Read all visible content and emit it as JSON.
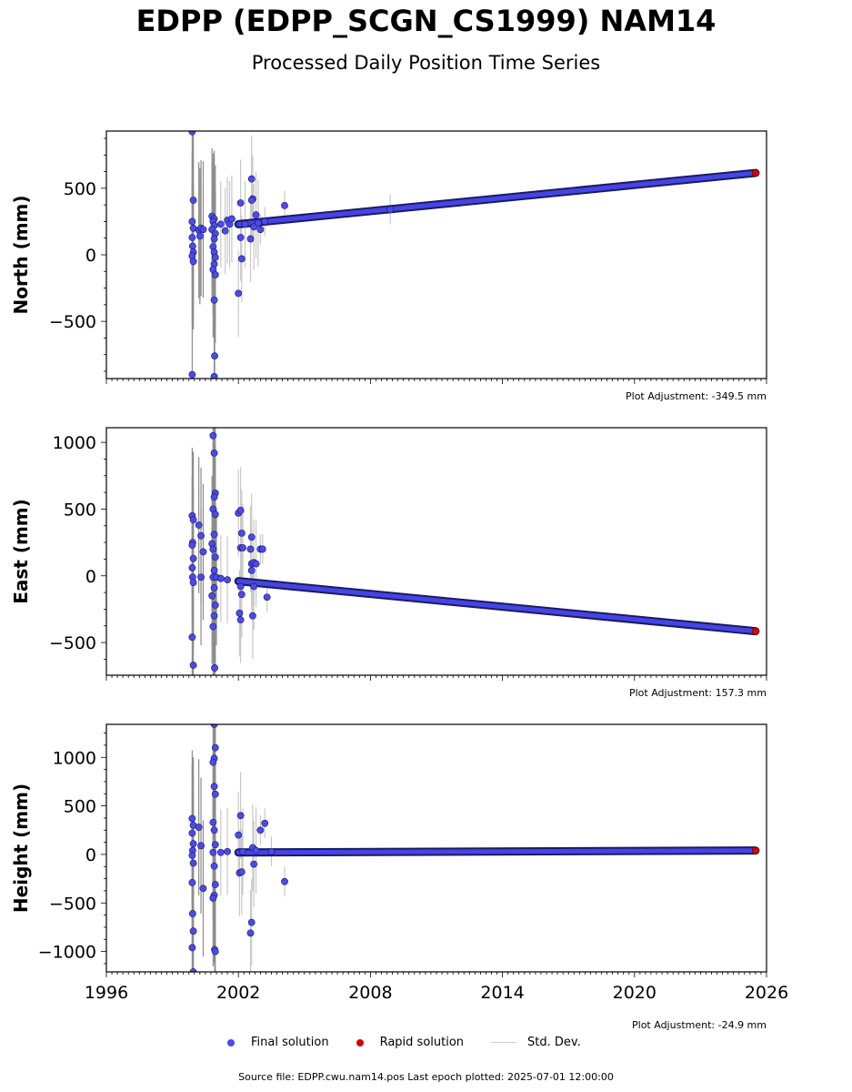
{
  "header": {
    "title": "EDPP (EDPP_SCGN_CS1999) NAM14",
    "subtitle": "Processed Daily Position Time Series"
  },
  "legend": {
    "final": "Final solution",
    "rapid": "Rapid solution",
    "stddev": "Std. Dev."
  },
  "footer": {
    "source": "Source file: EDPP.cwu.nam14.pos  Last epoch plotted: 2025-07-01 12:00:00"
  },
  "colors": {
    "final": "#4a4af0",
    "rapid": "#dd0000",
    "stddev": "#c8c8c8"
  },
  "chart_data": [
    {
      "type": "scatter",
      "ylabel": "North (mm)",
      "adjustment": "Plot Adjustment: -349.5 mm",
      "xlim": [
        1996,
        2026
      ],
      "ylim": [
        -930,
        930
      ],
      "xticks": [
        1996,
        2002,
        2008,
        2014,
        2020,
        2026
      ],
      "yticks": [
        -500,
        0,
        500
      ],
      "show_xtick_labels": false,
      "trend": {
        "start": [
          2002.0,
          230
        ],
        "end": [
          2025.5,
          615
        ]
      },
      "series": [
        {
          "name": "Final solution",
          "points": [
            [
              1999.9,
              925
            ],
            [
              1999.95,
              410
            ],
            [
              1999.9,
              250
            ],
            [
              1999.95,
              200
            ],
            [
              1999.9,
              130
            ],
            [
              1999.92,
              65
            ],
            [
              1999.95,
              20
            ],
            [
              1999.9,
              -10
            ],
            [
              1999.95,
              -50
            ],
            [
              1999.9,
              -900
            ],
            [
              2000.2,
              185
            ],
            [
              2000.3,
              200
            ],
            [
              2000.25,
              140
            ],
            [
              2000.4,
              190
            ],
            [
              2000.8,
              290
            ],
            [
              2000.9,
              270
            ],
            [
              2000.85,
              250
            ],
            [
              2000.9,
              220
            ],
            [
              2000.8,
              190
            ],
            [
              2000.95,
              160
            ],
            [
              2000.9,
              120
            ],
            [
              2000.85,
              60
            ],
            [
              2000.9,
              20
            ],
            [
              2000.95,
              -20
            ],
            [
              2000.9,
              -70
            ],
            [
              2000.85,
              -110
            ],
            [
              2000.95,
              -150
            ],
            [
              2000.9,
              -340
            ],
            [
              2000.92,
              -760
            ],
            [
              2000.9,
              -915
            ],
            [
              2001.2,
              230
            ],
            [
              2001.5,
              260
            ],
            [
              2001.6,
              230
            ],
            [
              2001.4,
              180
            ],
            [
              2001.7,
              270
            ],
            [
              2002.0,
              -290
            ],
            [
              2002.1,
              390
            ],
            [
              2002.1,
              130
            ],
            [
              2002.15,
              -30
            ],
            [
              2002.3,
              230
            ],
            [
              2002.6,
              570
            ],
            [
              2002.65,
              420
            ],
            [
              2002.6,
              410
            ],
            [
              2002.55,
              120
            ],
            [
              2002.7,
              210
            ],
            [
              2002.9,
              240
            ],
            [
              2002.8,
              300
            ],
            [
              2003.0,
              190
            ],
            [
              2003.2,
              250
            ],
            [
              2004.1,
              370
            ],
            [
              2008.9,
              340
            ]
          ]
        },
        {
          "name": "Rapid solution",
          "points": [
            [
              2025.5,
              615
            ]
          ]
        }
      ]
    },
    {
      "type": "scatter",
      "ylabel": "East (mm)",
      "adjustment": "Plot Adjustment: 157.3 mm",
      "xlim": [
        1996,
        2026
      ],
      "ylim": [
        -745,
        1110
      ],
      "xticks": [
        1996,
        2002,
        2008,
        2014,
        2020,
        2026
      ],
      "yticks": [
        -500,
        0,
        500,
        1000
      ],
      "show_xtick_labels": false,
      "trend": {
        "start": [
          2002.0,
          -40
        ],
        "end": [
          2025.5,
          -415
        ]
      },
      "series": [
        {
          "name": "Final solution",
          "points": [
            [
              1999.9,
              450
            ],
            [
              1999.95,
              420
            ],
            [
              1999.92,
              250
            ],
            [
              1999.9,
              230
            ],
            [
              1999.95,
              130
            ],
            [
              1999.9,
              60
            ],
            [
              1999.92,
              -10
            ],
            [
              1999.95,
              -50
            ],
            [
              1999.9,
              -460
            ],
            [
              1999.95,
              -670
            ],
            [
              2000.2,
              380
            ],
            [
              2000.3,
              300
            ],
            [
              2000.4,
              180
            ],
            [
              2000.3,
              -10
            ],
            [
              2000.85,
              1050
            ],
            [
              2000.9,
              920
            ],
            [
              2000.95,
              620
            ],
            [
              2000.9,
              590
            ],
            [
              2000.85,
              500
            ],
            [
              2000.95,
              460
            ],
            [
              2000.9,
              310
            ],
            [
              2000.8,
              240
            ],
            [
              2000.85,
              200
            ],
            [
              2000.95,
              140
            ],
            [
              2000.9,
              40
            ],
            [
              2000.85,
              -10
            ],
            [
              2000.9,
              -90
            ],
            [
              2000.8,
              -150
            ],
            [
              2000.95,
              -220
            ],
            [
              2000.9,
              -300
            ],
            [
              2000.85,
              -380
            ],
            [
              2000.92,
              -690
            ],
            [
              2001.0,
              -10
            ],
            [
              2001.2,
              -20
            ],
            [
              2001.5,
              -30
            ],
            [
              2002.0,
              470
            ],
            [
              2002.1,
              490
            ],
            [
              2002.15,
              320
            ],
            [
              2002.1,
              210
            ],
            [
              2002.2,
              210
            ],
            [
              2002.1,
              -80
            ],
            [
              2002.15,
              -140
            ],
            [
              2002.05,
              -280
            ],
            [
              2002.1,
              -330
            ],
            [
              2002.6,
              290
            ],
            [
              2002.55,
              200
            ],
            [
              2002.6,
              90
            ],
            [
              2002.7,
              100
            ],
            [
              2002.6,
              40
            ],
            [
              2002.8,
              90
            ],
            [
              2002.7,
              -80
            ],
            [
              2002.65,
              -300
            ],
            [
              2003.0,
              200
            ],
            [
              2003.1,
              200
            ],
            [
              2003.3,
              -160
            ]
          ]
        },
        {
          "name": "Rapid solution",
          "points": [
            [
              2025.5,
              -415
            ]
          ]
        }
      ]
    },
    {
      "type": "scatter",
      "ylabel": "Height (mm)",
      "adjustment": "Plot Adjustment: -24.9 mm",
      "xlim": [
        1996,
        2026
      ],
      "ylim": [
        -1210,
        1340
      ],
      "xticks": [
        1996,
        2002,
        2008,
        2014,
        2020,
        2026
      ],
      "yticks": [
        -1000,
        -500,
        0,
        500,
        1000
      ],
      "show_xtick_labels": true,
      "xtick_labels": [
        "1996",
        "2002",
        "2008",
        "2014",
        "2020",
        "2026"
      ],
      "trend": {
        "start": [
          2002.0,
          20
        ],
        "end": [
          2025.5,
          40
        ]
      },
      "series": [
        {
          "name": "Final solution",
          "points": [
            [
              1999.9,
              370
            ],
            [
              1999.95,
              300
            ],
            [
              1999.9,
              220
            ],
            [
              1999.95,
              110
            ],
            [
              1999.92,
              40
            ],
            [
              1999.9,
              -10
            ],
            [
              1999.95,
              -90
            ],
            [
              1999.9,
              -290
            ],
            [
              1999.92,
              -610
            ],
            [
              1999.95,
              -790
            ],
            [
              1999.9,
              -960
            ],
            [
              1999.95,
              -1210
            ],
            [
              2000.2,
              280
            ],
            [
              2000.3,
              90
            ],
            [
              2000.4,
              -350
            ],
            [
              2000.9,
              1340
            ],
            [
              2000.95,
              1100
            ],
            [
              2000.9,
              990
            ],
            [
              2000.85,
              950
            ],
            [
              2000.9,
              700
            ],
            [
              2000.95,
              620
            ],
            [
              2000.85,
              330
            ],
            [
              2000.9,
              250
            ],
            [
              2000.95,
              100
            ],
            [
              2000.85,
              20
            ],
            [
              2000.9,
              -120
            ],
            [
              2000.95,
              -310
            ],
            [
              2000.9,
              -420
            ],
            [
              2000.85,
              -450
            ],
            [
              2000.92,
              -980
            ],
            [
              2000.95,
              -1000
            ],
            [
              2001.2,
              20
            ],
            [
              2001.5,
              30
            ],
            [
              2002.0,
              200
            ],
            [
              2002.1,
              400
            ],
            [
              2002.05,
              -190
            ],
            [
              2002.15,
              -180
            ],
            [
              2002.2,
              30
            ],
            [
              2002.6,
              -700
            ],
            [
              2002.55,
              -810
            ],
            [
              2002.65,
              70
            ],
            [
              2002.7,
              -100
            ],
            [
              2002.8,
              40
            ],
            [
              2003.0,
              250
            ],
            [
              2003.2,
              320
            ],
            [
              2003.5,
              30
            ],
            [
              2004.1,
              -280
            ]
          ]
        },
        {
          "name": "Rapid solution",
          "points": [
            [
              2025.5,
              40
            ]
          ]
        }
      ]
    }
  ]
}
